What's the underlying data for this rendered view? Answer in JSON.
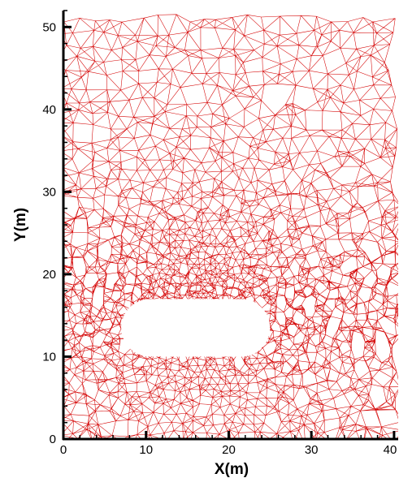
{
  "figure": {
    "type": "unstructured-triangular-mesh",
    "mesh_color": "#d40000",
    "background_color": "#ffffff",
    "axis_color": "#000000"
  },
  "axes": {
    "x": {
      "label": "X(m)",
      "ticks": [
        "0",
        "10",
        "20",
        "30",
        "40"
      ],
      "range": [
        0,
        40.5
      ]
    },
    "y": {
      "label": "Y(m)",
      "ticks": [
        "0",
        "10",
        "20",
        "30",
        "40",
        "50"
      ],
      "range": [
        0,
        52
      ]
    }
  },
  "obstacle": {
    "shape": "stadium",
    "x_range": [
      7,
      25
    ],
    "y_range": [
      10,
      17
    ],
    "fill": "#ffffff"
  },
  "refinement_center": {
    "x": 16.5,
    "y": 17
  }
}
